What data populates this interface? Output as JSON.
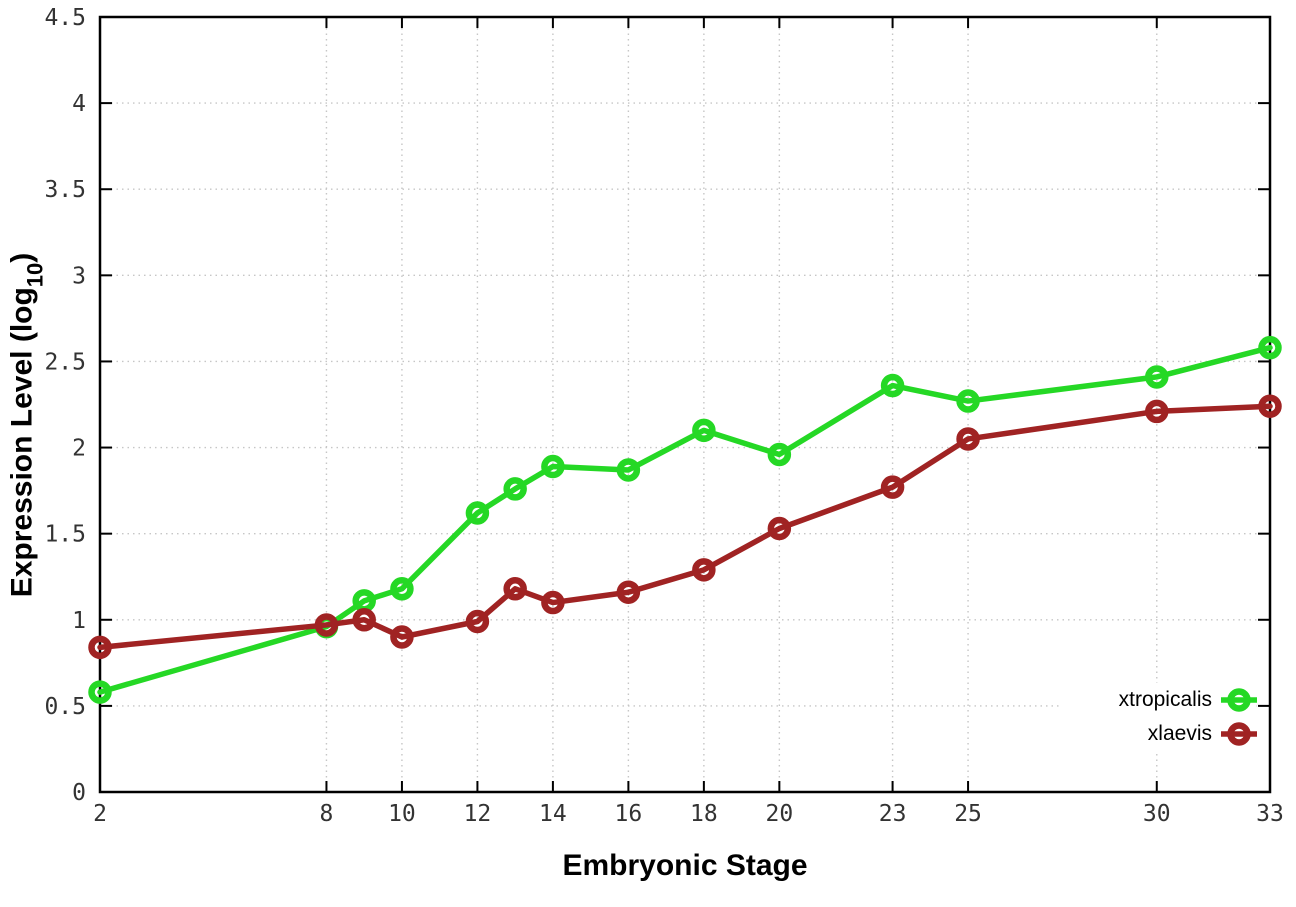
{
  "chart_data": {
    "type": "line",
    "title": "",
    "xlabel": "Embryonic Stage",
    "ylabel": "Expression Level (log10)",
    "ylabel_parts": {
      "prefix": "Expression Level (log",
      "sub": "10",
      "suffix": ")"
    },
    "x": [
      2,
      8,
      9,
      10,
      12,
      13,
      14,
      16,
      18,
      20,
      23,
      25,
      30,
      33
    ],
    "series": [
      {
        "name": "xtropicalis",
        "color": "#25d825",
        "values": [
          0.58,
          0.96,
          1.11,
          1.18,
          1.62,
          1.76,
          1.89,
          1.87,
          2.1,
          1.96,
          2.36,
          2.27,
          2.41,
          2.58
        ]
      },
      {
        "name": "xlaevis",
        "color": "#a02323",
        "values": [
          0.84,
          0.97,
          1.0,
          0.9,
          0.99,
          1.18,
          1.1,
          1.16,
          1.29,
          1.53,
          1.77,
          2.05,
          2.21,
          2.24
        ]
      }
    ],
    "xlim": [
      2,
      33
    ],
    "ylim": [
      0,
      4.5
    ],
    "x_ticks": [
      2,
      8,
      10,
      12,
      14,
      16,
      18,
      20,
      23,
      25,
      30,
      33
    ],
    "y_ticks": [
      0,
      0.5,
      1,
      1.5,
      2,
      2.5,
      3,
      3.5,
      4,
      4.5
    ],
    "grid": true,
    "legend_position": "bottom-right",
    "marker": "open-circle"
  },
  "style_colors": {
    "grid": "#c6c6c6",
    "axis": "#000000",
    "tick_label": "#333333",
    "background": "#ffffff"
  }
}
